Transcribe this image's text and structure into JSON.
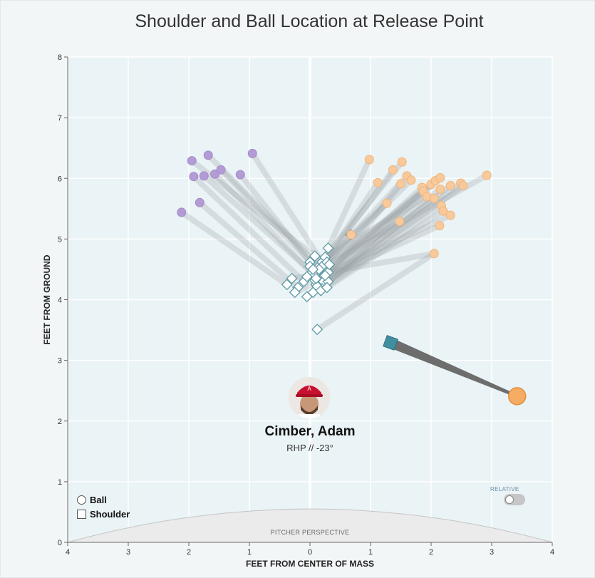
{
  "chart_data": {
    "type": "scatter",
    "title": "Shoulder and Ball Location at Release Point",
    "xlabel": "FEET FROM CENTER OF MASS",
    "ylabel": "FEET FROM GROUND",
    "xlim": [
      -4,
      4
    ],
    "ylim": [
      0,
      8
    ],
    "x_tick_labels": [
      "4",
      "3",
      "2",
      "1",
      "0",
      "1",
      "2",
      "3",
      "4"
    ],
    "y_tick_labels": [
      "0",
      "1",
      "2",
      "3",
      "4",
      "5",
      "6",
      "7",
      "8"
    ],
    "grid": true,
    "legend": [
      {
        "name": "Ball",
        "marker": "circle"
      },
      {
        "name": "Shoulder",
        "marker": "square"
      }
    ],
    "colors": {
      "purple_ball": "#b39bd6",
      "orange_ball": "#f8c99b",
      "highlight_ball": "#f6ac62",
      "shoulder_stroke": "#5f9aa6",
      "highlight_shoulder": "#3f8fa0",
      "link": "#9aa3a6"
    },
    "purple_pairs": [
      {
        "ball": [
          -1.95,
          6.29
        ],
        "shoulder": [
          0.08,
          4.72
        ]
      },
      {
        "ball": [
          -1.68,
          6.38
        ],
        "shoulder": [
          0.15,
          4.55
        ]
      },
      {
        "ball": [
          -0.95,
          6.41
        ],
        "shoulder": [
          0.2,
          4.62
        ]
      },
      {
        "ball": [
          -1.92,
          6.03
        ],
        "shoulder": [
          -0.1,
          4.3
        ]
      },
      {
        "ball": [
          -1.75,
          6.04
        ],
        "shoulder": [
          0.03,
          4.45
        ]
      },
      {
        "ball": [
          -1.57,
          6.07
        ],
        "shoulder": [
          0.12,
          4.35
        ]
      },
      {
        "ball": [
          -1.47,
          6.14
        ],
        "shoulder": [
          0.2,
          4.42
        ]
      },
      {
        "ball": [
          -1.15,
          6.06
        ],
        "shoulder": [
          0.0,
          4.62
        ]
      },
      {
        "ball": [
          -1.82,
          5.6
        ],
        "shoulder": [
          -0.2,
          4.2
        ]
      },
      {
        "ball": [
          -2.12,
          5.44
        ],
        "shoulder": [
          -0.38,
          4.25
        ]
      }
    ],
    "orange_pairs": [
      {
        "ball": [
          0.98,
          6.31
        ],
        "shoulder": [
          0.3,
          4.85
        ]
      },
      {
        "ball": [
          1.52,
          6.27
        ],
        "shoulder": [
          0.25,
          4.7
        ]
      },
      {
        "ball": [
          1.37,
          6.14
        ],
        "shoulder": [
          0.2,
          4.55
        ]
      },
      {
        "ball": [
          1.6,
          6.04
        ],
        "shoulder": [
          0.15,
          4.48
        ]
      },
      {
        "ball": [
          1.12,
          5.93
        ],
        "shoulder": [
          0.08,
          4.4
        ]
      },
      {
        "ball": [
          1.67,
          5.97
        ],
        "shoulder": [
          0.28,
          4.62
        ]
      },
      {
        "ball": [
          1.5,
          5.91
        ],
        "shoulder": [
          0.22,
          4.3
        ]
      },
      {
        "ball": [
          1.85,
          5.85
        ],
        "shoulder": [
          0.3,
          4.45
        ]
      },
      {
        "ball": [
          2.0,
          5.9
        ],
        "shoulder": [
          0.1,
          4.25
        ]
      },
      {
        "ball": [
          2.07,
          5.96
        ],
        "shoulder": [
          0.32,
          4.58
        ]
      },
      {
        "ball": [
          2.15,
          6.01
        ],
        "shoulder": [
          0.2,
          4.18
        ]
      },
      {
        "ball": [
          2.32,
          5.88
        ],
        "shoulder": [
          0.05,
          4.12
        ]
      },
      {
        "ball": [
          2.49,
          5.92
        ],
        "shoulder": [
          0.3,
          4.3
        ]
      },
      {
        "ball": [
          2.53,
          5.88
        ],
        "shoulder": [
          -0.05,
          4.05
        ]
      },
      {
        "ball": [
          2.92,
          6.05
        ],
        "shoulder": [
          0.15,
          4.5
        ]
      },
      {
        "ball": [
          1.87,
          5.79
        ],
        "shoulder": [
          0.08,
          4.32
        ]
      },
      {
        "ball": [
          1.93,
          5.7
        ],
        "shoulder": [
          0.0,
          4.55
        ]
      },
      {
        "ball": [
          2.15,
          5.82
        ],
        "shoulder": [
          0.25,
          4.4
        ]
      },
      {
        "ball": [
          2.05,
          5.67
        ],
        "shoulder": [
          0.12,
          4.22
        ]
      },
      {
        "ball": [
          1.27,
          5.59
        ],
        "shoulder": [
          -0.05,
          4.38
        ]
      },
      {
        "ball": [
          2.17,
          5.55
        ],
        "shoulder": [
          0.18,
          4.15
        ]
      },
      {
        "ball": [
          2.2,
          5.46
        ],
        "shoulder": [
          0.28,
          4.2
        ]
      },
      {
        "ball": [
          2.32,
          5.39
        ],
        "shoulder": [
          0.1,
          4.35
        ]
      },
      {
        "ball": [
          1.48,
          5.29
        ],
        "shoulder": [
          0.05,
          4.5
        ]
      },
      {
        "ball": [
          2.14,
          5.22
        ],
        "shoulder": [
          -0.25,
          4.12
        ]
      },
      {
        "ball": [
          2.05,
          4.76
        ],
        "shoulder": [
          -0.3,
          4.35
        ]
      },
      {
        "ball": [
          0.68,
          5.07
        ],
        "shoulder": [
          0.67,
          5.07
        ]
      },
      {
        "ball": [
          0.12,
          3.51
        ],
        "shoulder": [
          0.12,
          3.51
        ]
      }
    ],
    "highlight_pair": {
      "ball": [
        3.42,
        2.41
      ],
      "shoulder": [
        1.33,
        3.29
      ]
    },
    "orange_link_tail": {
      "from": [
        0.12,
        3.51
      ],
      "to": [
        2.05,
        4.76
      ]
    }
  },
  "pitcher": {
    "name": "Cimber, Adam",
    "info": "RHP // -23°"
  },
  "relative_label": "RELATIVE",
  "perspective_label": "PITCHER PERSPECTIVE"
}
